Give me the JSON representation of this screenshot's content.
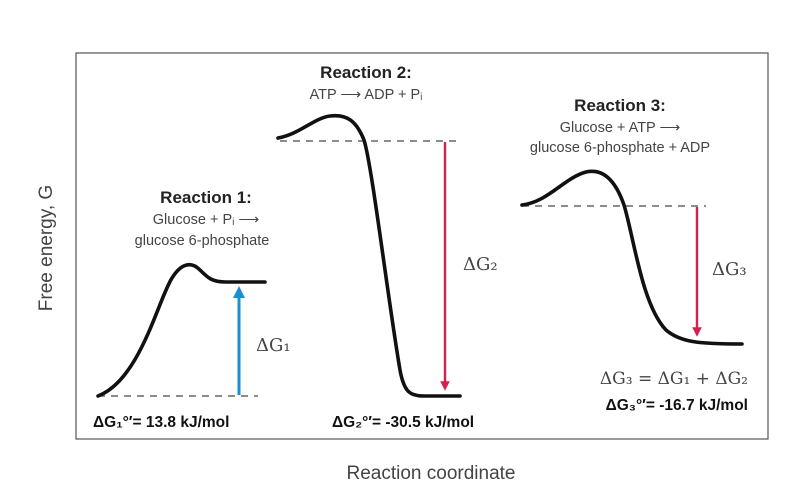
{
  "axes": {
    "y_label": "Free energy, G",
    "x_label": "Reaction coordinate"
  },
  "reactions": [
    {
      "title": "Reaction 1:",
      "equation_line1": "Glucose + Pᵢ ⟶",
      "equation_line2": "glucose 6-phosphate",
      "delta_symbol": "ΔG₁",
      "standard_value": "ΔG₁°′= 13.8 kJ/mol",
      "arrow_color": "#1a8fd1"
    },
    {
      "title": "Reaction 2:",
      "equation_line1": "ATP ⟶ ADP + Pᵢ",
      "delta_symbol": "ΔG₂",
      "standard_value": "ΔG₂°′= -30.5 kJ/mol",
      "arrow_color": "#d6204f"
    },
    {
      "title": "Reaction 3:",
      "equation_line1": "Glucose + ATP ⟶",
      "equation_line2": "glucose 6-phosphate + ADP",
      "delta_symbol": "ΔG₃",
      "sum_equation": "ΔG₃ = ΔG₁ + ΔG₂",
      "standard_value": "ΔG₃°′= -16.7 kJ/mol",
      "arrow_color": "#d6204f"
    }
  ],
  "colors": {
    "curve": "#111111",
    "frame": "#555555",
    "dashed": "#666666"
  }
}
